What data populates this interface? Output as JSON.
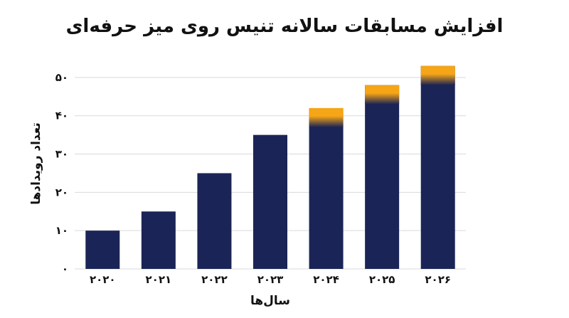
{
  "chart_data": {
    "type": "bar",
    "title": "افزایش مسابقات سالانه تنیس روی میز حرفه‌ای",
    "xlabel": "سال‌ها",
    "ylabel": "تعداد رویدادها",
    "categories": [
      "۲۰۲۰",
      "۲۰۲۱",
      "۲۰۲۲",
      "۲۰۲۳",
      "۲۰۲۴",
      "۲۰۲۵",
      "۲۰۲۶"
    ],
    "values": [
      10,
      15,
      25,
      35,
      42,
      48,
      53
    ],
    "projected_from_index": 4,
    "projected_band": 5,
    "ylim": [
      0,
      55
    ],
    "yticks": [
      0,
      10,
      20,
      30,
      40,
      50
    ],
    "ytick_labels": [
      "۰",
      "۱۰",
      "۲۰",
      "۳۰",
      "۴۰",
      "۵۰"
    ],
    "grid": true,
    "colors": {
      "bar": "#1b2456",
      "projected": "#f5a516",
      "grid": "#d9d9d9"
    }
  }
}
